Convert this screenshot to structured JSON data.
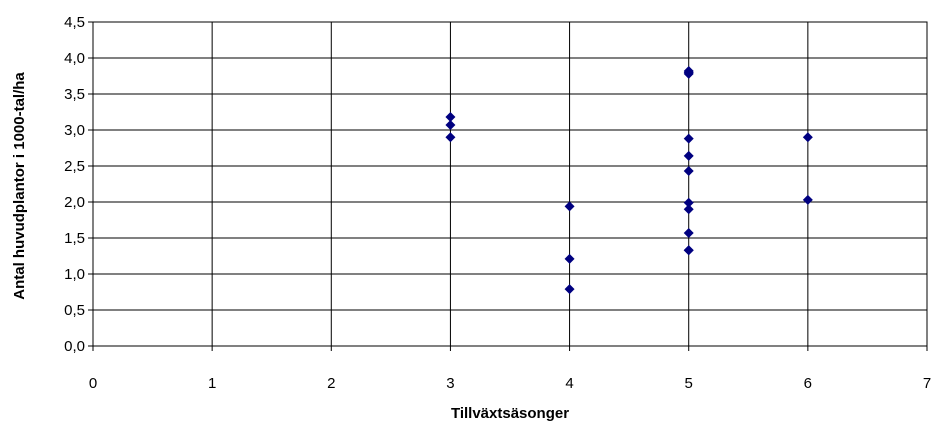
{
  "chart_data": {
    "type": "scatter",
    "title": "",
    "xlabel": "Tillväxtsäsonger",
    "ylabel": "Antal huvudplantor i 1000-tal/ha",
    "xlim": [
      0,
      7
    ],
    "ylim": [
      0,
      4.5
    ],
    "x_ticks": [
      0,
      1,
      2,
      3,
      4,
      5,
      6,
      7
    ],
    "y_ticks": [
      0,
      0.5,
      1,
      1.5,
      2,
      2.5,
      3,
      3.5,
      4,
      4.5
    ],
    "x_tick_labels": [
      "0",
      "1",
      "2",
      "3",
      "4",
      "5",
      "6",
      "7"
    ],
    "y_tick_labels": [
      "0,0",
      "0,5",
      "1,0",
      "1,5",
      "2,0",
      "2,5",
      "3,0",
      "3,5",
      "4,0",
      "4,5"
    ],
    "grid": true,
    "marker_color": "#000080",
    "series": [
      {
        "x": [
          3,
          3,
          3,
          4,
          4,
          4,
          5,
          5,
          5,
          5,
          5,
          5,
          5,
          5,
          5,
          5,
          5,
          6,
          6
        ],
        "y": [
          3.18,
          3.07,
          2.9,
          1.94,
          1.21,
          0.79,
          3.82,
          3.78,
          2.88,
          2.64,
          2.43,
          1.99,
          1.9,
          1.57,
          1.33,
          1.33,
          3.8,
          2.9,
          2.03
        ]
      }
    ]
  }
}
